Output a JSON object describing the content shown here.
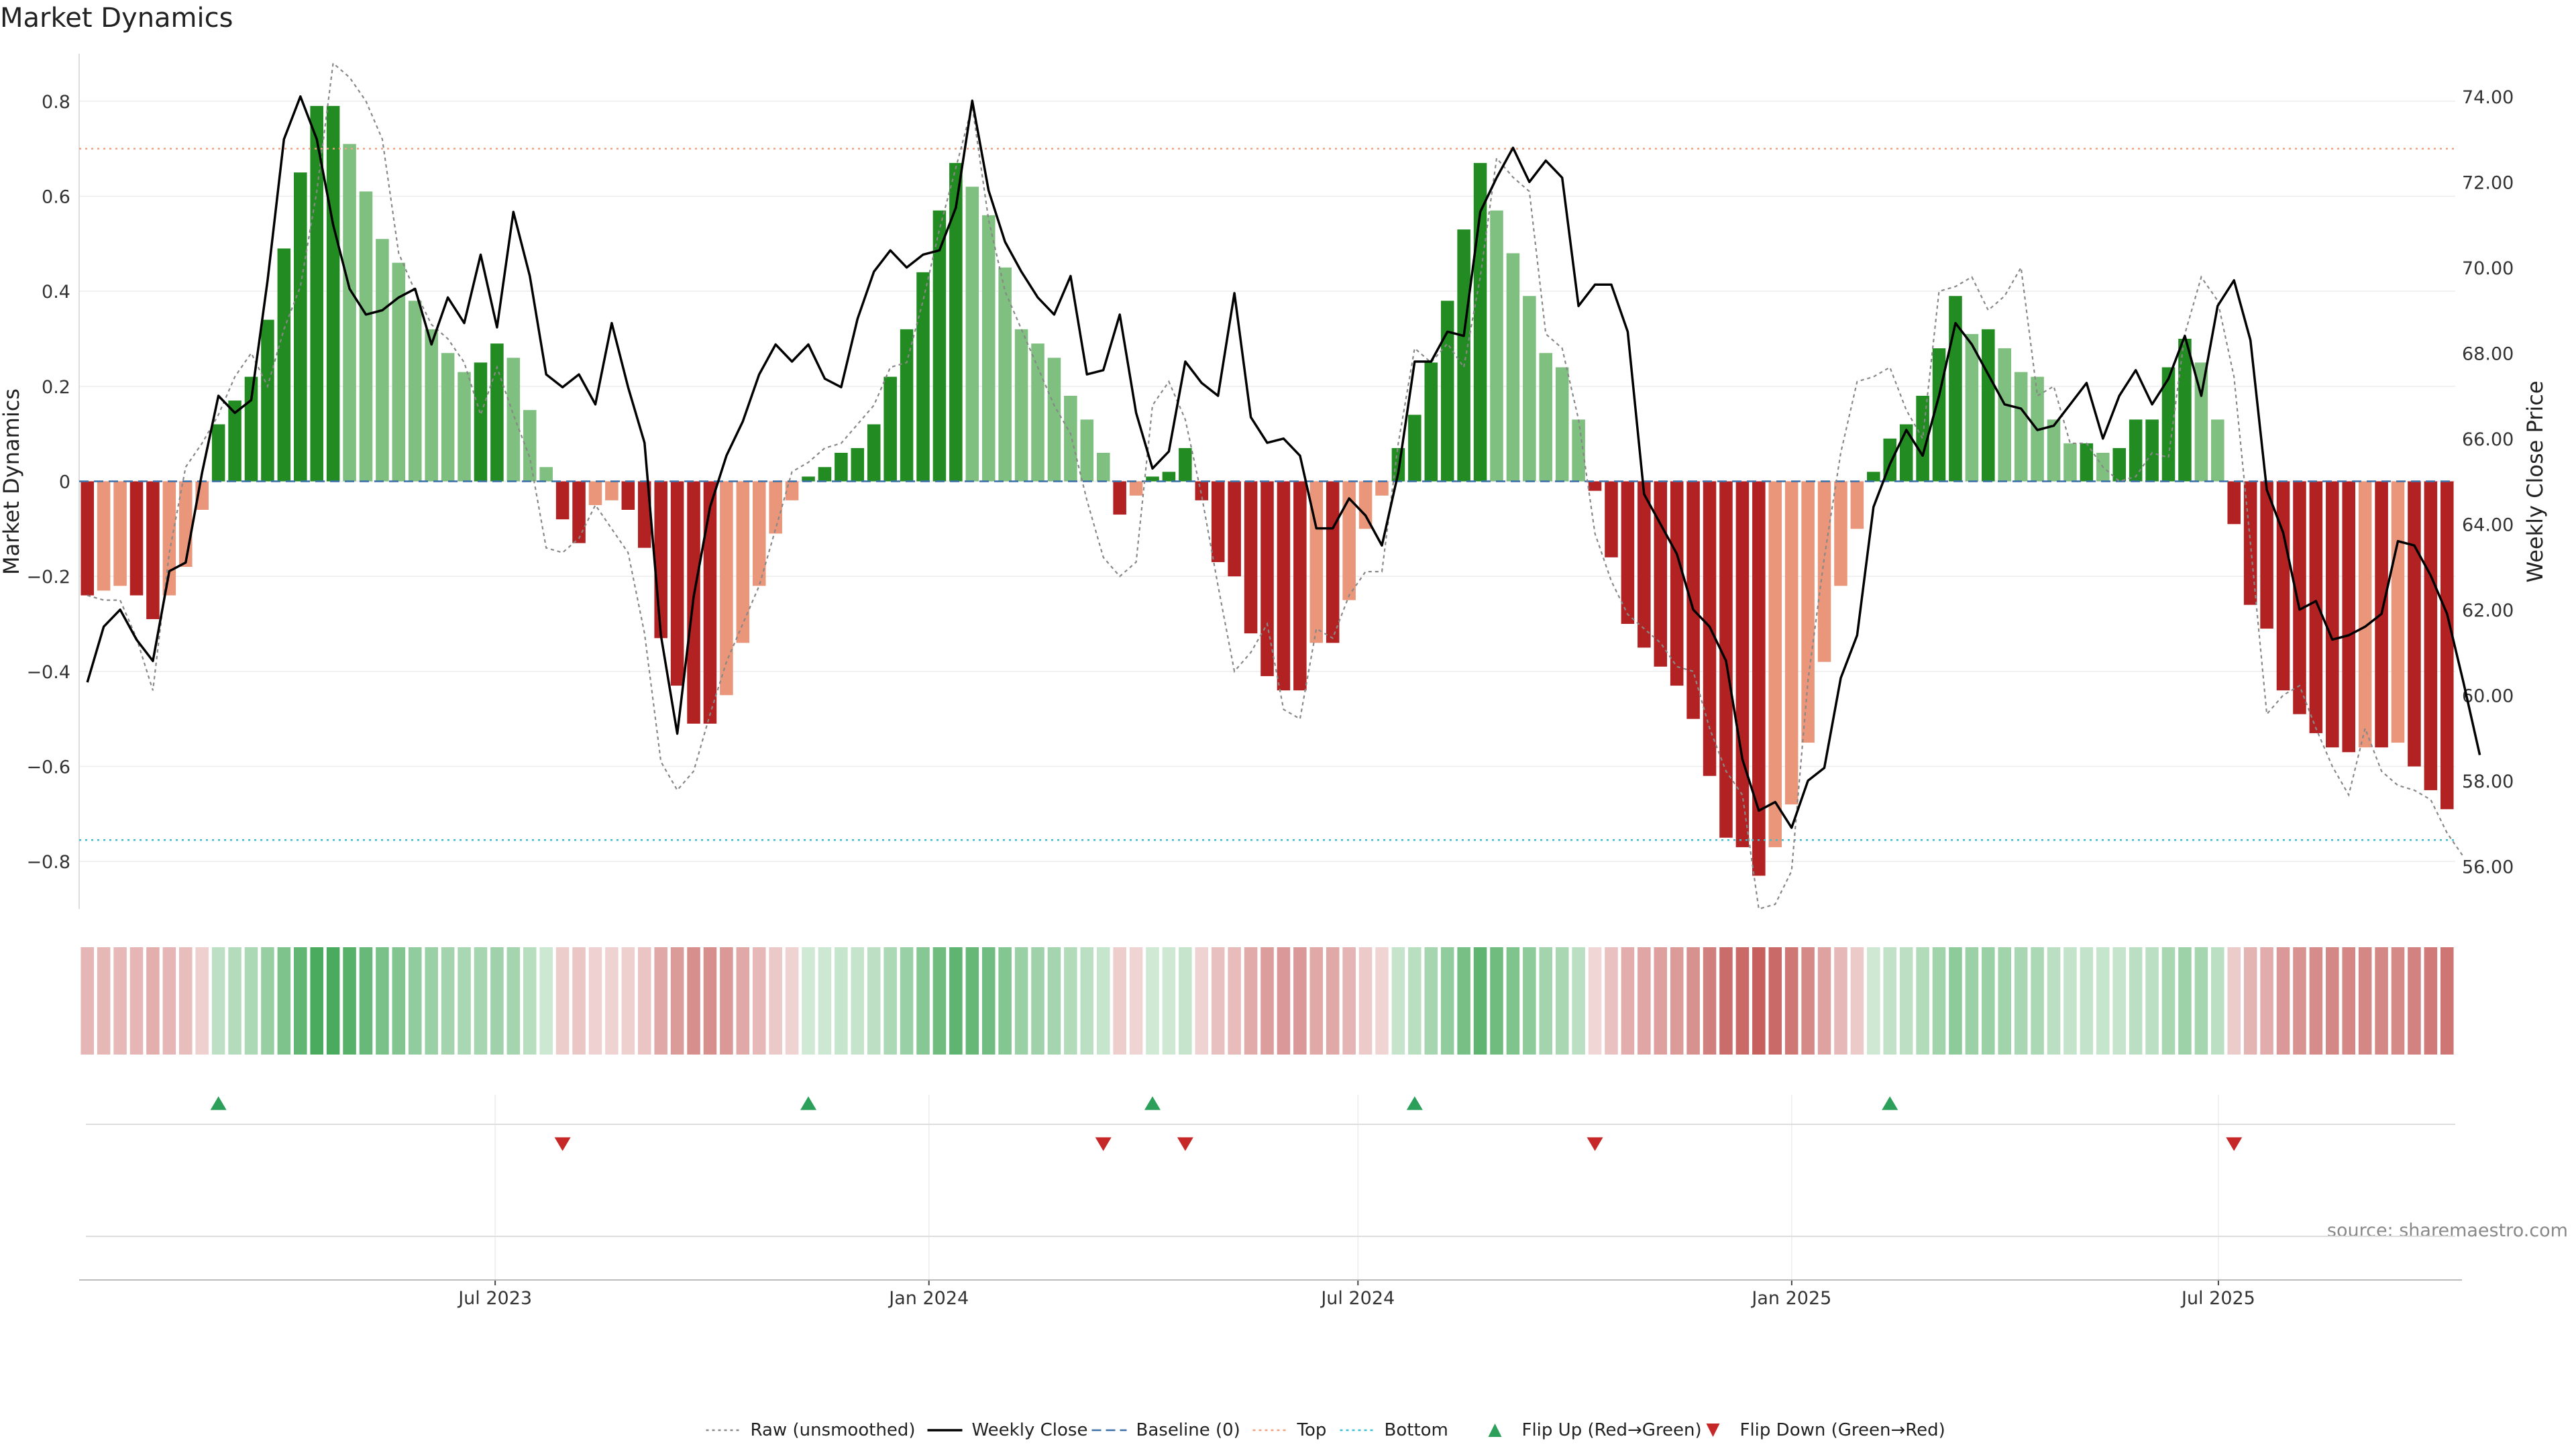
{
  "chart_data": {
    "type": "bar",
    "title": "Market Dynamics",
    "source_note": "source: sharemaestro.com",
    "left_axis": {
      "label": "Market Dynamics",
      "ylim": [
        -0.9,
        0.9
      ],
      "ticks": [
        -0.8,
        -0.6,
        -0.4,
        -0.2,
        0,
        0.2,
        0.4,
        0.6,
        0.8
      ],
      "tick_labels": [
        "−0.8",
        "−0.6",
        "−0.4",
        "−0.2",
        "0",
        "0.2",
        "0.4",
        "0.6",
        "0.8"
      ]
    },
    "right_axis": {
      "label": "Weekly Close Price",
      "ylim": [
        55.0,
        75.0
      ],
      "ticks": [
        56,
        58,
        60,
        62,
        64,
        66,
        68,
        70,
        72,
        74
      ],
      "tick_labels": [
        "56.00",
        "58.00",
        "60.00",
        "62.00",
        "64.00",
        "66.00",
        "68.00",
        "70.00",
        "72.00",
        "74.00"
      ]
    },
    "x_axis": {
      "start": "2023-01-09",
      "end": "2025-10-06",
      "ticks": [
        "2023-07-01",
        "2024-01-01",
        "2024-07-01",
        "2025-01-01",
        "2025-07-01"
      ],
      "tick_labels": [
        "Jul 2023",
        "Jan 2024",
        "Jul 2024",
        "Jan 2025",
        "Jul 2025"
      ]
    },
    "reference_lines": {
      "top": 0.7,
      "bottom": -0.755,
      "baseline": 0
    },
    "series": [
      {
        "name": "Market Dynamics",
        "values": [
          -0.24,
          -0.23,
          -0.22,
          -0.24,
          -0.29,
          -0.24,
          -0.18,
          -0.06,
          0.12,
          0.17,
          0.22,
          0.34,
          0.49,
          0.65,
          0.79,
          0.79,
          0.71,
          0.61,
          0.51,
          0.46,
          0.38,
          0.32,
          0.27,
          0.23,
          0.25,
          0.29,
          0.26,
          0.15,
          0.03,
          -0.08,
          -0.13,
          -0.05,
          -0.04,
          -0.06,
          -0.14,
          -0.33,
          -0.43,
          -0.51,
          -0.51,
          -0.45,
          -0.34,
          -0.22,
          -0.11,
          -0.04,
          0.01,
          0.03,
          0.06,
          0.07,
          0.12,
          0.22,
          0.32,
          0.44,
          0.57,
          0.67,
          0.62,
          0.56,
          0.45,
          0.32,
          0.29,
          0.26,
          0.18,
          0.13,
          0.06,
          -0.07,
          -0.03,
          0.01,
          0.02,
          0.07,
          -0.04,
          -0.17,
          -0.2,
          -0.32,
          -0.41,
          -0.44,
          -0.44,
          -0.34,
          -0.34,
          -0.25,
          -0.1,
          -0.03,
          0.07,
          0.14,
          0.25,
          0.38,
          0.53,
          0.67,
          0.57,
          0.48,
          0.39,
          0.27,
          0.24,
          0.13,
          -0.02,
          -0.16,
          -0.3,
          -0.35,
          -0.39,
          -0.43,
          -0.5,
          -0.62,
          -0.75,
          -0.77,
          -0.83,
          -0.77,
          -0.68,
          -0.55,
          -0.38,
          -0.22,
          -0.1,
          0.02,
          0.09,
          0.12,
          0.18,
          0.28,
          0.39,
          0.31,
          0.32,
          0.28,
          0.23,
          0.22,
          0.13,
          0.08,
          0.08,
          0.06,
          0.07,
          0.13,
          0.13,
          0.24,
          0.3,
          0.25,
          0.13,
          -0.09,
          -0.26,
          -0.31,
          -0.44,
          -0.49,
          -0.53,
          -0.56,
          -0.57,
          -0.56,
          -0.56,
          -0.55,
          -0.6,
          -0.65,
          -0.69
        ]
      },
      {
        "name": "Raw (unsmoothed)",
        "values": [
          -0.24,
          -0.25,
          -0.25,
          -0.33,
          -0.44,
          -0.15,
          0.03,
          0.08,
          0.14,
          0.22,
          0.27,
          0.2,
          0.32,
          0.41,
          0.61,
          0.88,
          0.85,
          0.8,
          0.72,
          0.48,
          0.4,
          0.33,
          0.3,
          0.25,
          0.14,
          0.24,
          0.14,
          0.05,
          -0.14,
          -0.15,
          -0.12,
          -0.05,
          -0.1,
          -0.15,
          -0.32,
          -0.59,
          -0.65,
          -0.61,
          -0.49,
          -0.38,
          -0.3,
          -0.22,
          -0.1,
          0.02,
          0.04,
          0.07,
          0.08,
          0.12,
          0.16,
          0.24,
          0.25,
          0.38,
          0.53,
          0.66,
          0.79,
          0.55,
          0.4,
          0.32,
          0.24,
          0.16,
          0.1,
          -0.04,
          -0.16,
          -0.2,
          -0.17,
          0.16,
          0.21,
          0.13,
          -0.03,
          -0.22,
          -0.4,
          -0.36,
          -0.3,
          -0.48,
          -0.5,
          -0.31,
          -0.33,
          -0.24,
          -0.19,
          -0.19,
          0.08,
          0.28,
          0.25,
          0.29,
          0.24,
          0.43,
          0.68,
          0.64,
          0.61,
          0.31,
          0.28,
          0.13,
          -0.11,
          -0.21,
          -0.28,
          -0.31,
          -0.34,
          -0.39,
          -0.4,
          -0.52,
          -0.61,
          -0.66,
          -0.9,
          -0.89,
          -0.82,
          -0.42,
          -0.16,
          0.06,
          0.21,
          0.22,
          0.24,
          0.15,
          0.09,
          0.4,
          0.41,
          0.43,
          0.36,
          0.39,
          0.45,
          0.18,
          0.2,
          0.08,
          0.08,
          0.03,
          0.0,
          0.01,
          0.06,
          0.05,
          0.31,
          0.43,
          0.38,
          0.22,
          -0.13,
          -0.49,
          -0.45,
          -0.43,
          -0.52,
          -0.6,
          -0.66,
          -0.52,
          -0.61,
          -0.64,
          -0.65,
          -0.67,
          -0.74,
          -0.79
        ]
      },
      {
        "name": "Weekly Close",
        "values": [
          60.3,
          61.6,
          62.0,
          61.3,
          60.8,
          62.9,
          63.1,
          65.2,
          67.0,
          66.6,
          66.9,
          69.7,
          73.0,
          74.0,
          73.0,
          71.0,
          69.5,
          68.9,
          69.0,
          69.3,
          69.5,
          68.2,
          69.3,
          68.7,
          70.3,
          68.6,
          71.3,
          69.8,
          67.5,
          67.2,
          67.5,
          66.8,
          68.7,
          67.2,
          65.9,
          61.4,
          59.1,
          62.3,
          64.4,
          65.6,
          66.4,
          67.5,
          68.2,
          67.8,
          68.2,
          67.4,
          67.2,
          68.8,
          69.9,
          70.4,
          70.0,
          70.3,
          70.4,
          71.4,
          73.9,
          71.8,
          70.6,
          69.9,
          69.3,
          68.9,
          69.8,
          67.5,
          67.6,
          68.9,
          66.6,
          65.3,
          65.7,
          67.8,
          67.3,
          67.0,
          69.4,
          66.5,
          65.9,
          66.0,
          65.6,
          63.9,
          63.9,
          64.6,
          64.2,
          63.5,
          65.2,
          67.8,
          67.8,
          68.5,
          68.4,
          71.3,
          72.1,
          72.8,
          72.0,
          72.5,
          72.1,
          69.1,
          69.6,
          69.6,
          68.5,
          64.7,
          64.0,
          63.3,
          62.0,
          61.6,
          60.8,
          58.5,
          57.3,
          57.5,
          56.9,
          58.0,
          58.3,
          60.4,
          61.4,
          64.4,
          65.4,
          66.2,
          65.6,
          67.0,
          68.7,
          68.2,
          67.5,
          66.8,
          66.7,
          66.2,
          66.3,
          66.8,
          67.3,
          66.0,
          67.0,
          67.6,
          66.8,
          67.4,
          68.4,
          67.0,
          69.1,
          69.7,
          68.3,
          64.8,
          63.8,
          62.0,
          62.2,
          61.3,
          61.4,
          61.6,
          61.9,
          63.6,
          63.5,
          62.8,
          61.9,
          60.3,
          58.6
        ]
      }
    ],
    "bar_colors": {
      "up_rising": "#228b22",
      "up_falling": "#7fbf7f",
      "down_falling": "#b22222",
      "down_rising": "#e9967a"
    },
    "regime_strip": {
      "up_color": "#2e9e45",
      "down_color": "#c0504d"
    },
    "flip_up_weeks": [
      8,
      44,
      65,
      81,
      110
    ],
    "flip_down_weeks": [
      29,
      62,
      67,
      92,
      131
    ],
    "flip_up_color": "#2ca05a",
    "flip_down_color": "#c62828",
    "legend": [
      {
        "label": "Raw (unsmoothed)",
        "style": "dotted",
        "color": "#888888"
      },
      {
        "label": "Weekly Close",
        "style": "solid",
        "color": "#000000"
      },
      {
        "label": "Baseline (0)",
        "style": "dashed",
        "color": "#3b6fa8"
      },
      {
        "label": "Top",
        "style": "dotted",
        "color": "#f0a080"
      },
      {
        "label": "Bottom",
        "style": "dotted",
        "color": "#3cc0d0"
      },
      {
        "label": "Flip Up (Red→Green)",
        "style": "triangle-up",
        "color": "#2ca05a"
      },
      {
        "label": "Flip Down (Green→Red)",
        "style": "triangle-down",
        "color": "#c62828"
      }
    ],
    "legend_placement": "bottom-center",
    "grid": true
  }
}
